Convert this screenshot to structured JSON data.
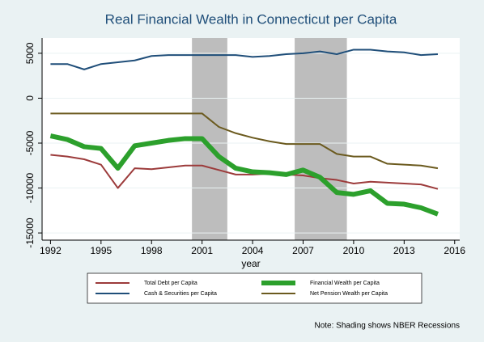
{
  "chart_data": {
    "type": "line",
    "title": "Real Financial Wealth in Connecticut per Capita",
    "xlabel": "year",
    "x": [
      1992,
      1993,
      1994,
      1995,
      1996,
      1997,
      1998,
      1999,
      2000,
      2001,
      2002,
      2003,
      2004,
      2005,
      2006,
      2007,
      2008,
      2009,
      2010,
      2011,
      2012,
      2013,
      2014,
      2015
    ],
    "series": [
      {
        "name": "Total Debt per Capita",
        "color": "#9c3b3b",
        "width": 2,
        "values": [
          -6300,
          -6500,
          -6800,
          -7400,
          -10000,
          -7800,
          -7900,
          -7700,
          -7500,
          -7500,
          -8000,
          -8500,
          -8500,
          -8400,
          -8500,
          -8600,
          -8900,
          -9100,
          -9500,
          -9300,
          -9400,
          -9500,
          -9600,
          -10100
        ]
      },
      {
        "name": "Financial Wealth per Capita",
        "color": "#2ca02c",
        "width": 6,
        "values": [
          -4200,
          -4600,
          -5400,
          -5600,
          -7800,
          -5300,
          -5000,
          -4700,
          -4500,
          -4500,
          -6500,
          -7800,
          -8200,
          -8300,
          -8500,
          -8000,
          -8800,
          -10500,
          -10700,
          -10300,
          -11700,
          -11800,
          -12200,
          -12900
        ]
      },
      {
        "name": "Cash & Securities per Capita",
        "color": "#1f4e79",
        "width": 2,
        "values": [
          3800,
          3800,
          3200,
          3800,
          4000,
          4200,
          4700,
          4800,
          4800,
          4800,
          4800,
          4800,
          4600,
          4700,
          4900,
          5000,
          5200,
          4900,
          5400,
          5400,
          5200,
          5100,
          4800,
          4900
        ]
      },
      {
        "name": "Net Pension Wealth per Capita",
        "color": "#6b5a1e",
        "width": 2,
        "values": [
          -1700,
          -1700,
          -1700,
          -1700,
          -1700,
          -1700,
          -1700,
          -1700,
          -1700,
          -1700,
          -3200,
          -3900,
          -4400,
          -4800,
          -5100,
          -5100,
          -5100,
          -6200,
          -6500,
          -6500,
          -7300,
          -7400,
          -7500,
          -7800
        ]
      }
    ],
    "recessions": [
      [
        2000.4,
        2002.5
      ],
      [
        2006.5,
        2009.6
      ]
    ],
    "recession_color": "#bdbdbd",
    "note": "Note: Shading shows NBER Recessions",
    "xlim": [
      1991.5,
      2016.3
    ],
    "xticks": [
      1992,
      1995,
      1998,
      2001,
      2004,
      2007,
      2010,
      2013,
      2016
    ],
    "ylim": [
      -15800,
      6700
    ],
    "yticks": [
      -15000,
      -10000,
      -5000,
      0,
      5000
    ],
    "grid": true
  }
}
